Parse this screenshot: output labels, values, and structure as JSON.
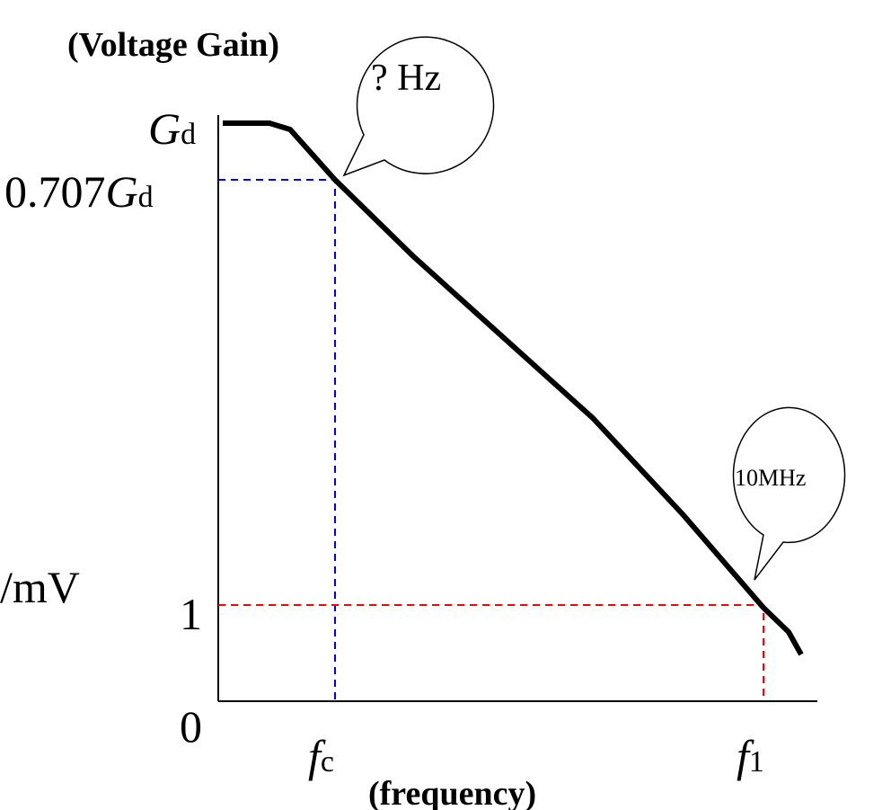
{
  "y_axis": {
    "title": "(Voltage Gain)",
    "unit": "/mV",
    "ticks": [
      {
        "symbol": "G",
        "sub": "d"
      },
      {
        "coef": "0.707",
        "symbol": "G",
        "sub": "d"
      },
      {
        "label": "1"
      },
      {
        "label": "0"
      }
    ]
  },
  "x_axis": {
    "title": "(frequency)",
    "ticks": [
      {
        "symbol": "f",
        "sub": "c"
      },
      {
        "symbol": "f",
        "sub": "1"
      }
    ]
  },
  "callouts": [
    {
      "text": "? Hz"
    },
    {
      "text": "10MHz"
    }
  ]
}
